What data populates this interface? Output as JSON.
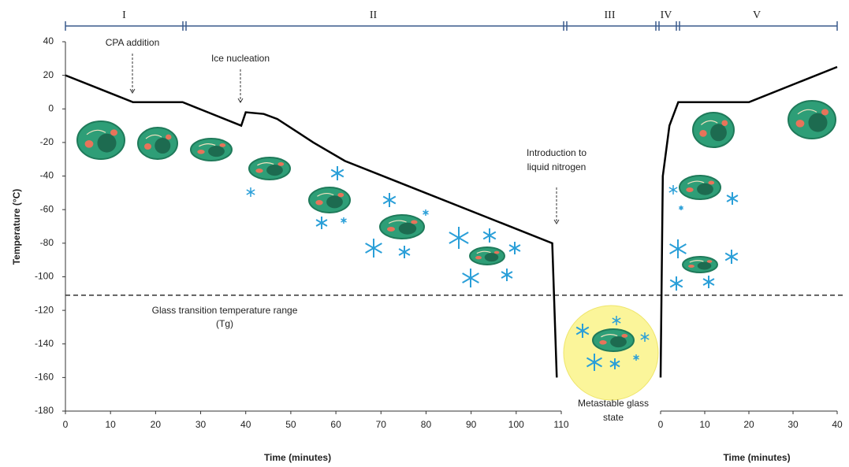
{
  "chart_data": {
    "type": "line",
    "y_label": "Temperature (°C)",
    "ylim": [
      -180,
      40
    ],
    "yticks": [
      -180,
      -160,
      -140,
      -120,
      -100,
      -80,
      -60,
      -40,
      -20,
      0,
      20,
      40
    ],
    "color": "#000000",
    "tg_value": -111,
    "tg_label": [
      "Glass transition temperature range",
      "(Tg)"
    ],
    "phases": [
      "I",
      "II",
      "III",
      "IV",
      "V"
    ],
    "annotations": [
      {
        "text": [
          "CPA addition"
        ]
      },
      {
        "text": [
          "Ice nucleation"
        ]
      },
      {
        "text": [
          "Introduction to",
          "liquid nitrogen"
        ]
      },
      {
        "text": [
          "Metastable glass",
          "state"
        ]
      }
    ],
    "panels": [
      {
        "x_label": "Time (minutes)",
        "xlim": [
          0,
          110
        ],
        "xticks": [
          0,
          10,
          20,
          30,
          40,
          50,
          60,
          70,
          80,
          90,
          100,
          110
        ],
        "x": [
          0,
          15,
          26,
          39,
          40,
          44,
          47,
          55,
          62,
          108,
          109
        ],
        "values": [
          20,
          4,
          4,
          -10,
          -2,
          -3,
          -6,
          -20,
          -31,
          -80,
          -160
        ]
      },
      {
        "x_label": "Time (minutes)",
        "xlim": [
          0,
          40
        ],
        "xticks": [
          0,
          10,
          20,
          30,
          40
        ],
        "x": [
          0,
          0.5,
          2,
          4,
          20,
          40
        ],
        "values": [
          -160,
          -40,
          -10,
          4,
          4,
          25
        ]
      }
    ]
  }
}
